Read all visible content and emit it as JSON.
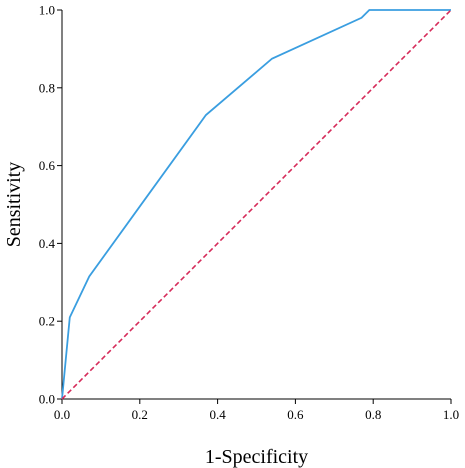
{
  "chart_data": {
    "type": "line",
    "xlabel": "1-Specificity",
    "ylabel": "Sensitivity",
    "xlim": [
      0,
      1
    ],
    "ylim": [
      0,
      1
    ],
    "x_ticks": [
      "0.0",
      "0.2",
      "0.4",
      "0.6",
      "0.8",
      "1.0"
    ],
    "y_ticks": [
      "0.0",
      "0.2",
      "0.4",
      "0.6",
      "0.8",
      "1.0"
    ],
    "grid": false,
    "legend": "none",
    "series": [
      {
        "color": "#3a9ee0",
        "style": "solid",
        "points": [
          [
            0.0,
            0.0
          ],
          [
            0.02,
            0.21
          ],
          [
            0.07,
            0.315
          ],
          [
            0.2,
            0.495
          ],
          [
            0.37,
            0.73
          ],
          [
            0.54,
            0.875
          ],
          [
            0.77,
            0.98
          ],
          [
            0.79,
            1.0
          ],
          [
            1.0,
            1.0
          ]
        ]
      },
      {
        "color": "#d62b5a",
        "style": "dashed",
        "points": [
          [
            0.0,
            0.0
          ],
          [
            1.0,
            1.0
          ]
        ]
      }
    ]
  }
}
